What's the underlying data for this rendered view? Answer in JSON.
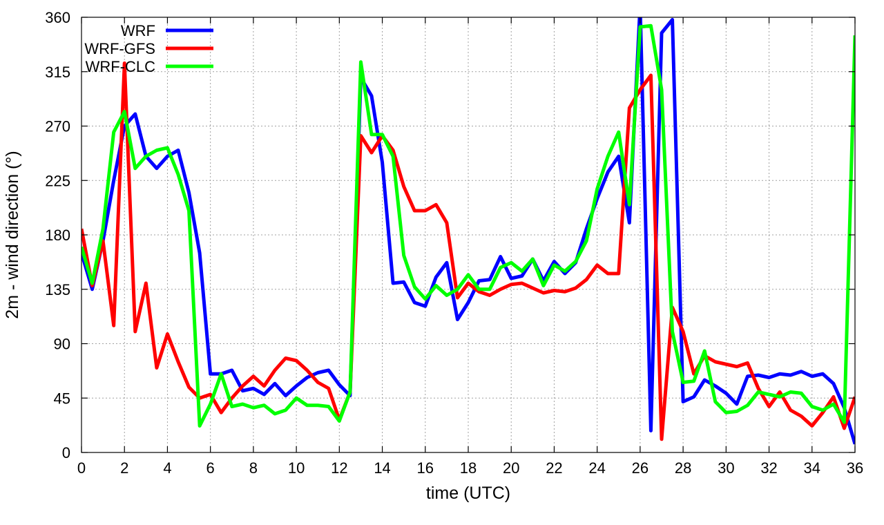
{
  "chart_data": {
    "type": "line",
    "xlabel": "time (UTC)",
    "ylabel": "2m - wind direction (°)",
    "xlim": [
      0,
      36
    ],
    "ylim": [
      0,
      360
    ],
    "xticks": [
      0,
      2,
      4,
      6,
      8,
      10,
      12,
      14,
      16,
      18,
      20,
      22,
      24,
      26,
      28,
      30,
      32,
      34,
      36
    ],
    "yticks": [
      0,
      45,
      90,
      135,
      180,
      225,
      270,
      315,
      360
    ],
    "grid": true,
    "legend": "top-left",
    "x": [
      0,
      0.5,
      1,
      1.5,
      2,
      2.5,
      3,
      3.5,
      4,
      4.5,
      5,
      5.5,
      6,
      6.5,
      7,
      7.5,
      8,
      8.5,
      9,
      9.5,
      10,
      10.5,
      11,
      11.5,
      12,
      12.5,
      13,
      13.5,
      14,
      14.5,
      15,
      15.5,
      16,
      16.5,
      17,
      17.5,
      18,
      18.5,
      19,
      19.5,
      20,
      20.5,
      21,
      21.5,
      22,
      22.5,
      23,
      23.5,
      24,
      24.5,
      25,
      25.5,
      26,
      26.5,
      27,
      27.5,
      28,
      28.5,
      29,
      29.5,
      30,
      30.5,
      31,
      31.5,
      32,
      32.5,
      33,
      33.5,
      34,
      34.5,
      35,
      35.5,
      36
    ],
    "series": [
      {
        "name": "WRF",
        "color": "#0000ff",
        "values": [
          165,
          135,
          175,
          225,
          270,
          280,
          245,
          235,
          245,
          250,
          215,
          165,
          65,
          65,
          68,
          51,
          53,
          48,
          57,
          47,
          55,
          62,
          66,
          68,
          56,
          47,
          310,
          295,
          240,
          140,
          141,
          124,
          121,
          145,
          157,
          110,
          124,
          142,
          143,
          162,
          144,
          146,
          160,
          142,
          158,
          148,
          157,
          185,
          210,
          232,
          245,
          190,
          370,
          18,
          347,
          358,
          42,
          46,
          60,
          55,
          49,
          40,
          63,
          64,
          62,
          65,
          64,
          67,
          63,
          65,
          57,
          37,
          7
        ]
      },
      {
        "name": "WRF-GFS",
        "color": "#ff0000",
        "values": [
          185,
          138,
          175,
          105,
          322,
          100,
          140,
          70,
          98,
          75,
          54,
          45,
          48,
          33,
          45,
          55,
          63,
          55,
          68,
          78,
          76,
          68,
          58,
          53,
          27,
          50,
          262,
          248,
          262,
          250,
          220,
          200,
          200,
          205,
          190,
          128,
          140,
          133,
          130,
          135,
          139,
          140,
          136,
          132,
          134,
          133,
          136,
          143,
          155,
          148,
          148,
          285,
          300,
          312,
          11,
          120,
          100,
          65,
          80,
          75,
          73,
          71,
          74,
          53,
          38,
          50,
          35,
          30,
          22,
          33,
          46,
          20,
          46
        ]
      },
      {
        "name": "WRF-CLC",
        "color": "#00ff00",
        "values": [
          170,
          140,
          185,
          265,
          282,
          235,
          245,
          250,
          252,
          230,
          200,
          22,
          40,
          65,
          38,
          40,
          37,
          39,
          32,
          35,
          45,
          39,
          39,
          38,
          26,
          50,
          323,
          263,
          263,
          245,
          163,
          137,
          127,
          138,
          130,
          135,
          147,
          135,
          135,
          153,
          157,
          150,
          160,
          138,
          155,
          150,
          158,
          175,
          218,
          245,
          265,
          205,
          352,
          353,
          300,
          100,
          58,
          59,
          84,
          42,
          33,
          34,
          39,
          50,
          48,
          46,
          50,
          49,
          38,
          35,
          40,
          25,
          345
        ]
      }
    ]
  }
}
